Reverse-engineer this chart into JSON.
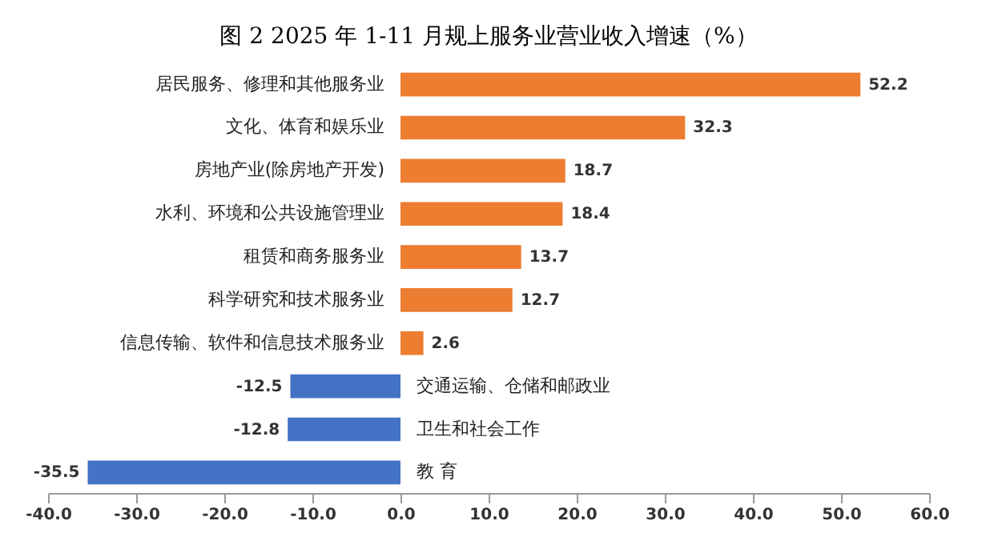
{
  "chart_data": {
    "type": "bar",
    "orientation": "horizontal",
    "title": "图 2 2025 年 1-11 月规上服务业营业收入增速（%）",
    "categories": [
      "居民服务、修理和其他服务业",
      "文化、体育和娱乐业",
      "房地产业(除房地产开发)",
      "水利、环境和公共设施管理业",
      "租赁和商务服务业",
      "科学研究和技术服务业",
      "信息传输、软件和信息技术服务业",
      "交通运输、仓储和邮政业",
      "卫生和社会工作",
      "教 育"
    ],
    "values": [
      52.2,
      32.3,
      18.7,
      18.4,
      13.7,
      12.7,
      2.6,
      -12.5,
      -12.8,
      -35.5
    ],
    "colors": [
      "#ed7d31",
      "#ed7d31",
      "#ed7d31",
      "#ed7d31",
      "#ed7d31",
      "#ed7d31",
      "#ed7d31",
      "#4472c4",
      "#4472c4",
      "#4472c4"
    ],
    "xlim": [
      -40,
      60
    ],
    "xticks": [
      {
        "value": -40,
        "label": "-40.0"
      },
      {
        "value": -30,
        "label": "-30.0"
      },
      {
        "value": -20,
        "label": "-20.0"
      },
      {
        "value": -10,
        "label": "-10.0"
      },
      {
        "value": 0,
        "label": "0.0"
      },
      {
        "value": 10,
        "label": "10.0"
      },
      {
        "value": 20,
        "label": "20.0"
      },
      {
        "value": 30,
        "label": "30.0"
      },
      {
        "value": 40,
        "label": "40.0"
      },
      {
        "value": 50,
        "label": "50.0"
      },
      {
        "value": 60,
        "label": "60.0"
      }
    ],
    "grid": false,
    "data_labels": true
  }
}
